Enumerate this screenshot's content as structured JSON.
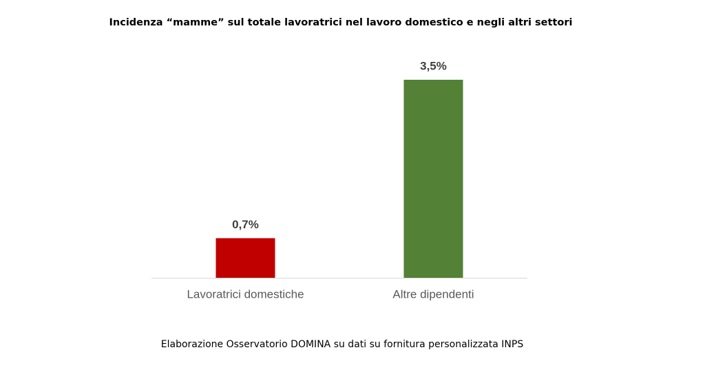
{
  "chart_data": {
    "type": "bar",
    "title": "Incidenza “mamme” sul totale lavoratrici nel lavoro domestico e negli altri settori",
    "categories": [
      "Lavoratrici domestiche",
      "Altre dipendenti"
    ],
    "values": [
      0.7,
      3.5
    ],
    "value_labels": [
      "0,7%",
      "3,5%"
    ],
    "colors": [
      "#c00000",
      "#538135"
    ],
    "ylim": [
      0,
      3.5
    ],
    "source": "Elaborazione Osservatorio DOMINA su dati su fornitura personalizzata INPS"
  }
}
